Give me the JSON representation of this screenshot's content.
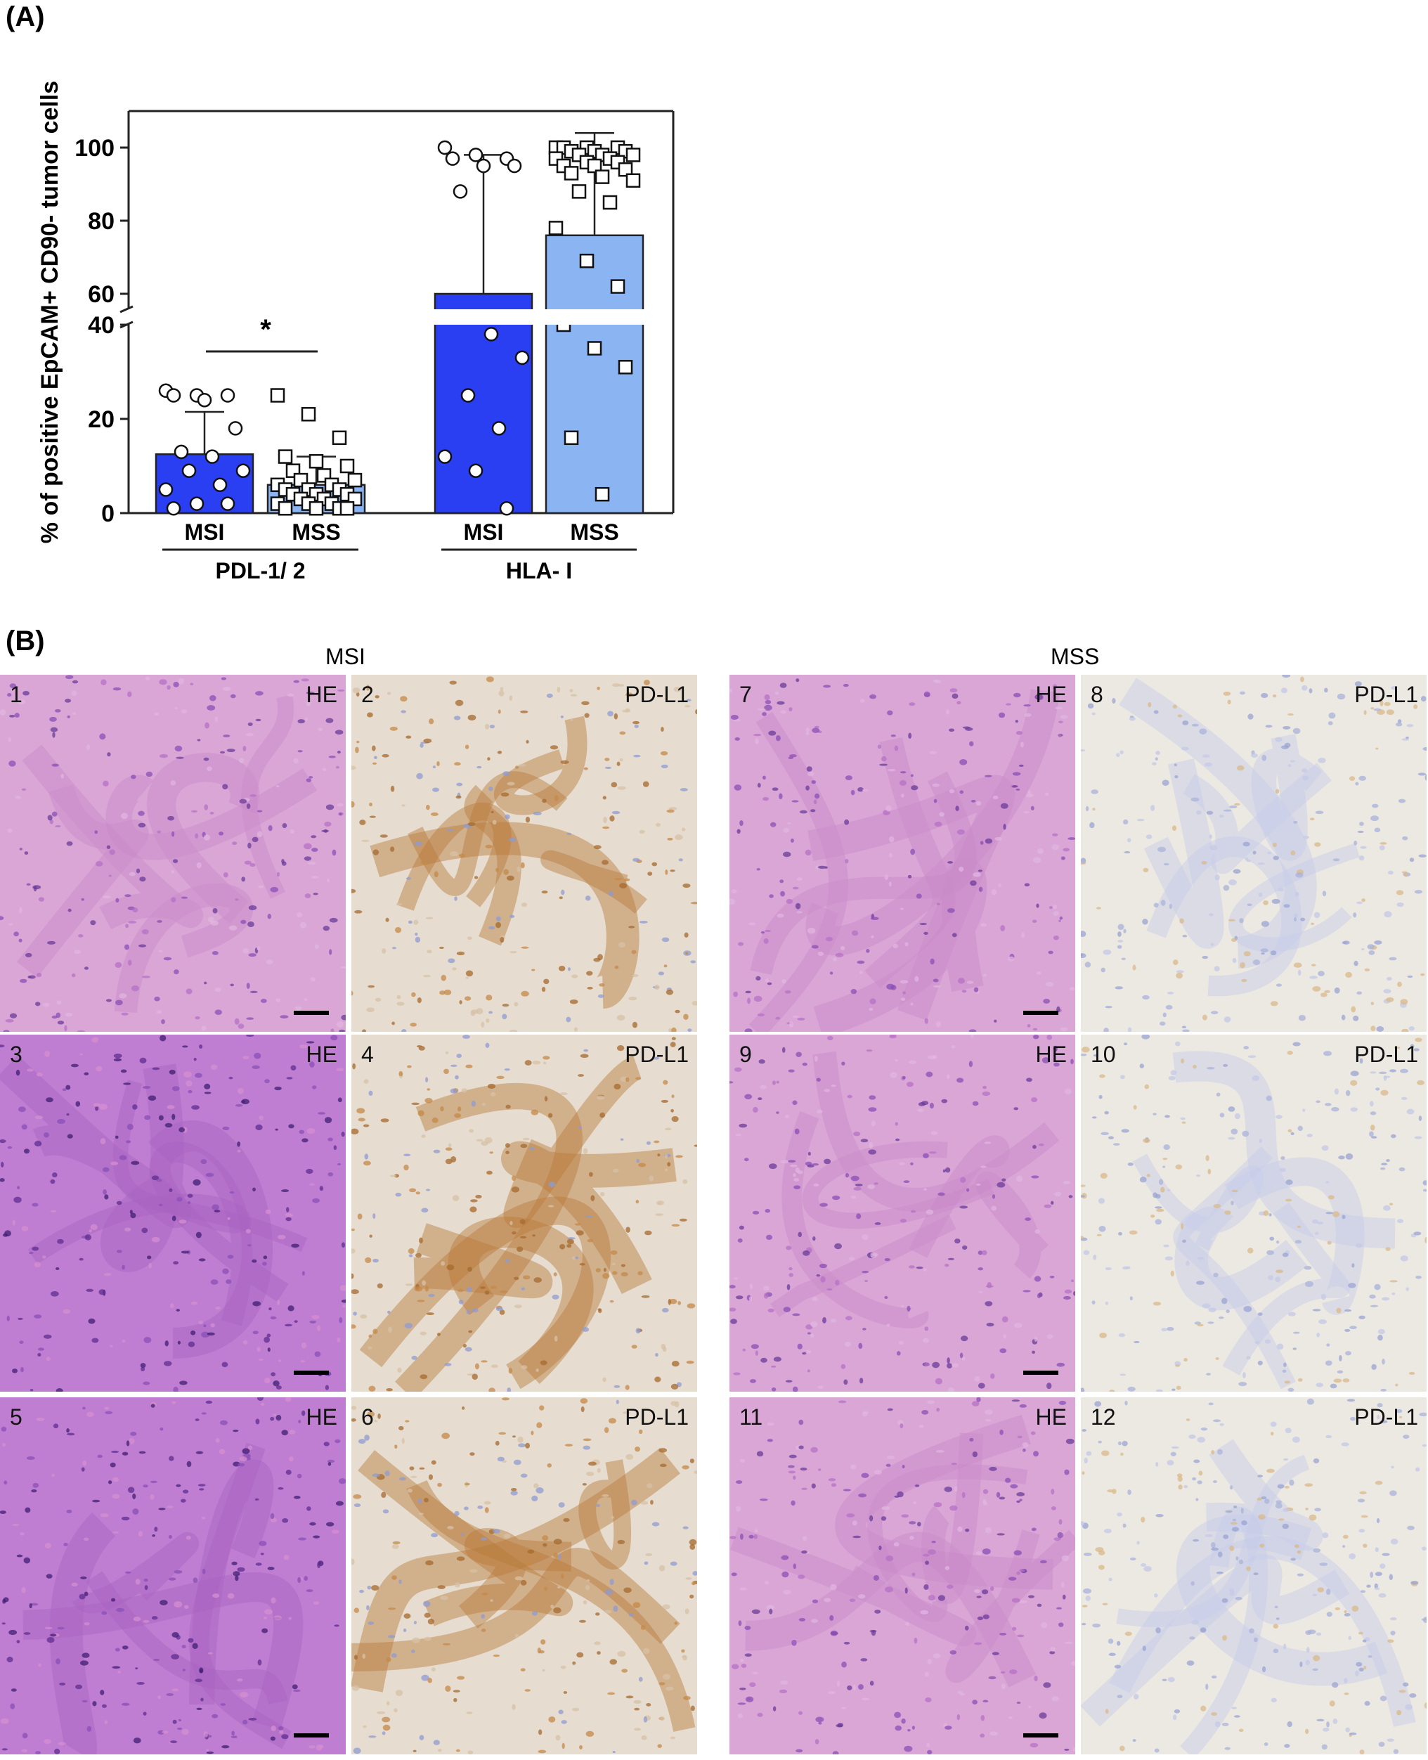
{
  "panel_a_label": "(A)",
  "panel_b_label": "(B)",
  "chart_data": {
    "type": "bar",
    "ylabel": "% of positive EpCAM+ CD90- tumor cells",
    "axis_break": [
      40,
      60
    ],
    "yticks": [
      "0",
      "20",
      "40",
      "60",
      "80",
      "100"
    ],
    "groups": [
      {
        "name": "PDL-1/ 2",
        "bars": [
          {
            "label": "MSI",
            "mean": 12.5,
            "sd": 9,
            "color": "#2a3ef2",
            "points": [
              26,
              25,
              25,
              25,
              24,
              18,
              13,
              12,
              9,
              9,
              6,
              5,
              2,
              2,
              1
            ]
          },
          {
            "label": "MSS",
            "mean": 6,
            "sd": 6,
            "color": "#8ab4f2",
            "points": [
              25,
              21,
              16,
              12,
              11,
              10,
              9,
              8,
              7,
              7,
              6,
              6,
              5,
              5,
              5,
              4,
              4,
              4,
              3,
              3,
              3,
              2,
              2,
              2,
              1,
              1,
              1,
              1
            ]
          }
        ],
        "significance": "*"
      },
      {
        "name": "HLA- I",
        "bars": [
          {
            "label": "MSI",
            "mean": 60,
            "sd": 38,
            "color": "#2a3ef2",
            "points": [
              100,
              98,
              97,
              97,
              95,
              95,
              88,
              38,
              33,
              25,
              18,
              12,
              9,
              1
            ]
          },
          {
            "label": "MSS",
            "mean": 76,
            "sd": 28,
            "color": "#8ab4f2",
            "points": [
              100,
              100,
              100,
              100,
              99,
              99,
              99,
              98,
              98,
              98,
              97,
              97,
              96,
              96,
              95,
              95,
              94,
              93,
              92,
              91,
              88,
              85,
              78,
              69,
              62,
              55,
              35,
              31,
              16,
              4
            ]
          }
        ]
      }
    ]
  },
  "panel_b": {
    "msi_title": "MSI",
    "mss_title": "MSS",
    "images": [
      {
        "num": "1",
        "stain": "HE",
        "kind": "he"
      },
      {
        "num": "2",
        "stain": "PD-L1",
        "kind": "pdl1"
      },
      {
        "num": "7",
        "stain": "HE",
        "kind": "he"
      },
      {
        "num": "8",
        "stain": "PD-L1",
        "kind": "pdl1_weak"
      },
      {
        "num": "3",
        "stain": "HE",
        "kind": "he_dark"
      },
      {
        "num": "4",
        "stain": "PD-L1",
        "kind": "pdl1"
      },
      {
        "num": "9",
        "stain": "HE",
        "kind": "he"
      },
      {
        "num": "10",
        "stain": "PD-L1",
        "kind": "pdl1_weak"
      },
      {
        "num": "5",
        "stain": "HE",
        "kind": "he_dark"
      },
      {
        "num": "6",
        "stain": "PD-L1",
        "kind": "pdl1"
      },
      {
        "num": "11",
        "stain": "HE",
        "kind": "he"
      },
      {
        "num": "12",
        "stain": "PD-L1",
        "kind": "pdl1_weak"
      }
    ]
  }
}
